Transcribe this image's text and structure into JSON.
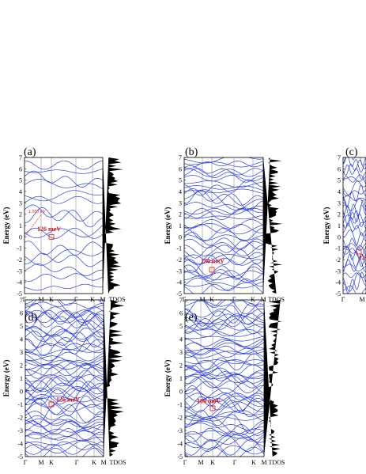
{
  "colors": {
    "band": "#2a3fe0",
    "annotation": "#dd1111",
    "dos_fill": "#000000",
    "frame": "#000000"
  },
  "chart_data": [
    {
      "panel": "(a)",
      "type": "line",
      "ylabel": "Energy (eV)",
      "ylim": [
        -5,
        7
      ],
      "y_ticks": [
        "-5",
        "-4",
        "-3",
        "-2",
        "-1",
        "0",
        "1",
        "2",
        "3",
        "4",
        "5",
        "6",
        "7"
      ],
      "x_ticks": [
        "Γ",
        "M",
        "K",
        "Γ",
        "K",
        "M"
      ],
      "dos_label": "TDOS",
      "annotations": [
        "126 meV",
        "1.953 eV"
      ],
      "gap_meV": 126,
      "gap_eV": 1.953,
      "band_count": 16
    },
    {
      "panel": "(b)",
      "type": "line",
      "ylabel": "Energy (eV)",
      "ylim": [
        -5,
        7
      ],
      "y_ticks": [
        "-5",
        "-4",
        "-3",
        "-2",
        "-1",
        "0",
        "1",
        "2",
        "3",
        "4",
        "5",
        "6",
        "7"
      ],
      "x_ticks": [
        "Γ",
        "M",
        "K",
        "Γ",
        "K",
        "M"
      ],
      "dos_label": "TDOS",
      "annotations": [
        "130 meV"
      ],
      "gap_meV": 130,
      "band_count": 40
    },
    {
      "panel": "(c)",
      "type": "line",
      "ylabel": "Energy (eV)",
      "ylim": [
        -5,
        7
      ],
      "y_ticks": [
        "-5",
        "-4",
        "-3",
        "-2",
        "-1",
        "0",
        "1",
        "2",
        "3",
        "4",
        "5",
        "6",
        "7"
      ],
      "x_ticks": [
        "Γ",
        "M"
      ],
      "annotations": [
        "12"
      ],
      "band_count": 30
    },
    {
      "panel": "(d)",
      "type": "line",
      "ylabel": "Energy (eV)",
      "ylim": [
        -5,
        7
      ],
      "y_ticks": [
        "-5",
        "-4",
        "-3",
        "-2",
        "-1",
        "0",
        "1",
        "2",
        "3",
        "4",
        "5",
        "6",
        "7"
      ],
      "x_ticks": [
        "Γ",
        "M",
        "K",
        "Γ",
        "K",
        "M"
      ],
      "dos_label": "TDOS",
      "annotations": [
        "126 meV"
      ],
      "gap_meV": 126,
      "band_count": 60
    },
    {
      "panel": "(e)",
      "type": "line",
      "ylabel": "Energy (eV)",
      "ylim": [
        -5,
        7
      ],
      "y_ticks": [
        "-5",
        "-4",
        "-3",
        "-2",
        "-1",
        "0",
        "1",
        "2",
        "3",
        "4",
        "5",
        "6",
        "7"
      ],
      "x_ticks": [
        "Γ",
        "M",
        "K",
        "Γ",
        "K",
        "M"
      ],
      "dos_label": "TDOS",
      "annotations": [
        "100 meV"
      ],
      "gap_meV": 100,
      "band_count": 60
    }
  ]
}
